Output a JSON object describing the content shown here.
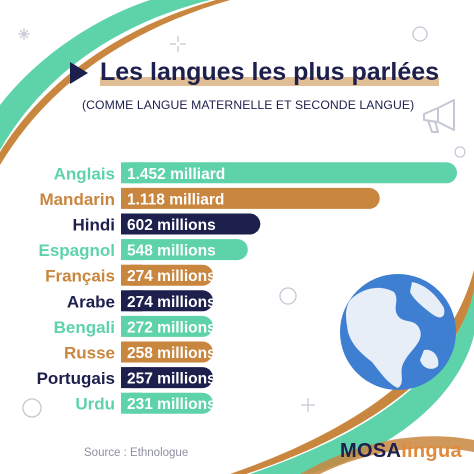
{
  "title": "Les langues les plus parlées",
  "subtitle": "(COMME LANGUE MATERNELLE ET SECONDE LANGUE)",
  "source": "Source : Ethnologue",
  "brand": {
    "part1": "MOSA",
    "part2": "lingua"
  },
  "icons": [
    "arrow-icon",
    "megaphone-icon",
    "globe-icon",
    "sparkle-icon"
  ],
  "colors": {
    "teal": "#5ed3a9",
    "orange": "#c9863f",
    "navy": "#1d1f4d",
    "globe": "#3f7fd1"
  },
  "chart_data": {
    "type": "bar",
    "orientation": "horizontal",
    "categories": [
      "Anglais",
      "Mandarin",
      "Hindi",
      "Espagnol",
      "Français",
      "Arabe",
      "Bengali",
      "Russe",
      "Portugais",
      "Urdu"
    ],
    "values": [
      1452,
      1118,
      602,
      548,
      274,
      274,
      272,
      258,
      257,
      231
    ],
    "unit": "millions",
    "value_labels": [
      "1.452 milliard",
      "1.118 milliard",
      "602 millions",
      "548 millions",
      "274 millions",
      "274 millions",
      "272 millions",
      "258 millions",
      "257 millions",
      "231 millions"
    ],
    "bar_colors": [
      "#5ed3a9",
      "#c9863f",
      "#1d1f4d",
      "#5ed3a9",
      "#c9863f",
      "#1d1f4d",
      "#5ed3a9",
      "#c9863f",
      "#1d1f4d",
      "#5ed3a9"
    ],
    "label_colors": [
      "#5ed3a9",
      "#c9863f",
      "#1d1f4d",
      "#5ed3a9",
      "#c9863f",
      "#1d1f4d",
      "#5ed3a9",
      "#c9863f",
      "#1d1f4d",
      "#5ed3a9"
    ],
    "xlabel": "",
    "ylabel": "",
    "grid": false,
    "legend": "none"
  }
}
